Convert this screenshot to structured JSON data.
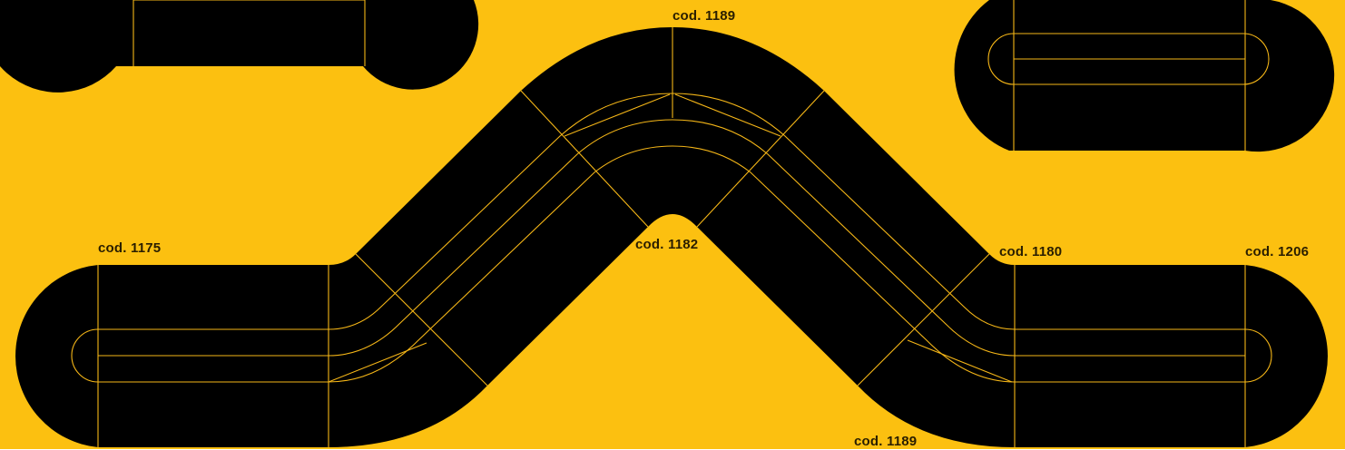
{
  "colors": {
    "background": "#FCC010",
    "track": "#000000",
    "line": "#F5B617",
    "label": "#2A1E00"
  },
  "labels": {
    "top_center": "cod. 1189",
    "center": "cod. 1182",
    "left": "cod. 1175",
    "right": "cod. 1180",
    "far_right": "cod. 1206",
    "bottom": "cod. 1189"
  }
}
